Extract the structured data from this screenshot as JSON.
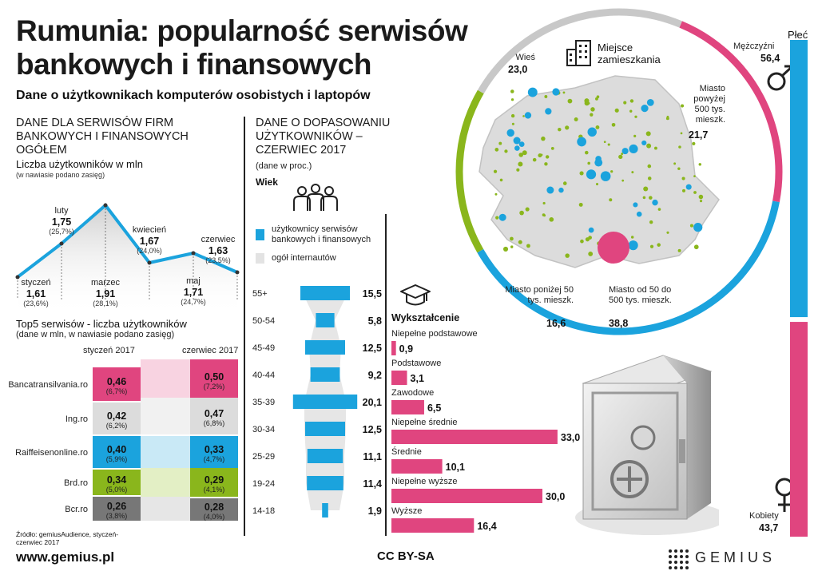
{
  "title": "Rumunia: popularność serwisów bankowych i finansowych",
  "subtitle": "Dane o użytkownikach komputerów osobistych i laptopów",
  "left": {
    "section": "DANE DLA SERWISÓW FIRM BANKOWYCH I FINANSOWYCH OGÓŁEM",
    "users_title": "Liczba użytkowników w mln",
    "users_note": "(w nawiasie podano zasięg)",
    "top5_title": "Top5 serwisów - liczba użytkowników",
    "top5_note": "(dane w mln, w nawiasie podano zasięg)",
    "col_jan": "styczeń 2017",
    "col_jun": "czerwiec 2017"
  },
  "middle": {
    "section": "DANE O DOPASOWANIU UŻYTKOWNIKÓW – CZERWIEC 2017",
    "note": "(dane w proc.)",
    "age_label": "Wiek",
    "legend_banking": "użytkownicy serwisów bankowych i finansowych",
    "legend_all": "ogół internautów",
    "edu_title": "Wykształcenie"
  },
  "residence": {
    "title": "Miejsce zamieszkania",
    "village_label": "Wieś",
    "village_value": "23,0",
    "big_city_label": "Miasto powyżej 500 tys. mieszk.",
    "big_city_value": "21,7",
    "small_city_label": "Miasto poniżej 50 tys. mieszk.",
    "small_city_value": "16,6",
    "mid_city_label": "Miasto od 50 do 500 tys. mieszk.",
    "mid_city_value": "38,8"
  },
  "gender": {
    "title": "Płeć",
    "male_label": "Mężczyźni",
    "male_value": "56,4",
    "female_label": "Kobiety",
    "female_value": "43,7"
  },
  "footer": {
    "source": "Źródło: gemiusAudience, styczeń-czerwiec 2017",
    "url": "www.gemius.pl",
    "license": "CC BY-SA",
    "brand": "GEMIUS"
  },
  "colors": {
    "blue": "#1ba3dd",
    "pink": "#e0457f",
    "green": "#8ab61c",
    "gray": "#c8c8c8",
    "dark_gray": "#777777"
  },
  "chart_data": [
    {
      "type": "line",
      "title": "Liczba użytkowników w mln",
      "categories": [
        "styczeń",
        "luty",
        "marzec",
        "kwiecień",
        "maj",
        "czerwiec"
      ],
      "values": [
        1.61,
        1.75,
        1.91,
        1.67,
        1.71,
        1.63
      ],
      "value_labels": [
        "1,61",
        "1,75",
        "1,91",
        "1,67",
        "1,71",
        "1,63"
      ],
      "reach_labels": [
        "(23,6%)",
        "(25,7%)",
        "(28,1%)",
        "(24,0%)",
        "(24,7%)",
        "(23,5%)"
      ]
    },
    {
      "type": "table",
      "title": "Top5 serwisów - liczba użytkowników",
      "rows": [
        {
          "name": "Bancatransilvania.ro",
          "jan": "0,46",
          "jan_reach": "(6,7%)",
          "jun": "0,50",
          "jun_reach": "(7,2%)",
          "color": "#e0457f",
          "light": "#f8d3e1"
        },
        {
          "name": "Ing.ro",
          "jan": "0,42",
          "jan_reach": "(6,2%)",
          "jun": "0,47",
          "jun_reach": "(6,8%)",
          "color": "#dcdcdc",
          "light": "#f1f1f1"
        },
        {
          "name": "Raiffeisenonline.ro",
          "jan": "0,40",
          "jan_reach": "(5,9%)",
          "jun": "0,33",
          "jun_reach": "(4,7%)",
          "color": "#1ba3dd",
          "light": "#c9e9f6"
        },
        {
          "name": "Brd.ro",
          "jan": "0,34",
          "jan_reach": "(5,0%)",
          "jun": "0,29",
          "jun_reach": "(4,1%)",
          "color": "#8ab61c",
          "light": "#e3efc5"
        },
        {
          "name": "Bcr.ro",
          "jan": "0,26",
          "jan_reach": "(3,8%)",
          "jun": "0,28",
          "jun_reach": "(4,0%)",
          "color": "#777777",
          "light": "#e6e6e6"
        }
      ]
    },
    {
      "type": "bar",
      "title": "Wiek",
      "categories": [
        "55+",
        "50-54",
        "45-49",
        "40-44",
        "35-39",
        "30-34",
        "25-29",
        "19-24",
        "14-18"
      ],
      "series": [
        {
          "name": "użytkownicy serwisów bankowych i finansowych",
          "values": [
            15.5,
            5.8,
            12.5,
            9.2,
            20.1,
            12.5,
            11.1,
            11.4,
            1.9
          ],
          "labels": [
            "15,5",
            "5,8",
            "12,5",
            "9,2",
            "20,1",
            "12,5",
            "11,1",
            "11,4",
            "1,9"
          ]
        },
        {
          "name": "ogół internautów",
          "values": [
            14.0,
            6.0,
            10.0,
            9.0,
            13.0,
            13.0,
            12.0,
            12.0,
            9.0
          ]
        }
      ]
    },
    {
      "type": "bar",
      "title": "Wykształcenie",
      "categories": [
        "Niepełne podstawowe",
        "Podstawowe",
        "Zawodowe",
        "Niepełne średnie",
        "Średnie",
        "Niepełne wyższe",
        "Wyższe"
      ],
      "values": [
        0.9,
        3.1,
        6.5,
        33.0,
        10.1,
        30.0,
        16.4
      ],
      "labels": [
        "0,9",
        "3,1",
        "6,5",
        "33,0",
        "10,1",
        "30,0",
        "16,4"
      ]
    },
    {
      "type": "pie",
      "title": "Miejsce zamieszkania",
      "categories": [
        "Wieś",
        "Miasto powyżej 500 tys. mieszk.",
        "Miasto od 50 do 500 tys. mieszk.",
        "Miasto poniżej 50 tys. mieszk."
      ],
      "values": [
        23.0,
        21.7,
        38.8,
        16.6
      ]
    },
    {
      "type": "bar",
      "title": "Płeć",
      "categories": [
        "Mężczyźni",
        "Kobiety"
      ],
      "values": [
        56.4,
        43.7
      ]
    }
  ]
}
